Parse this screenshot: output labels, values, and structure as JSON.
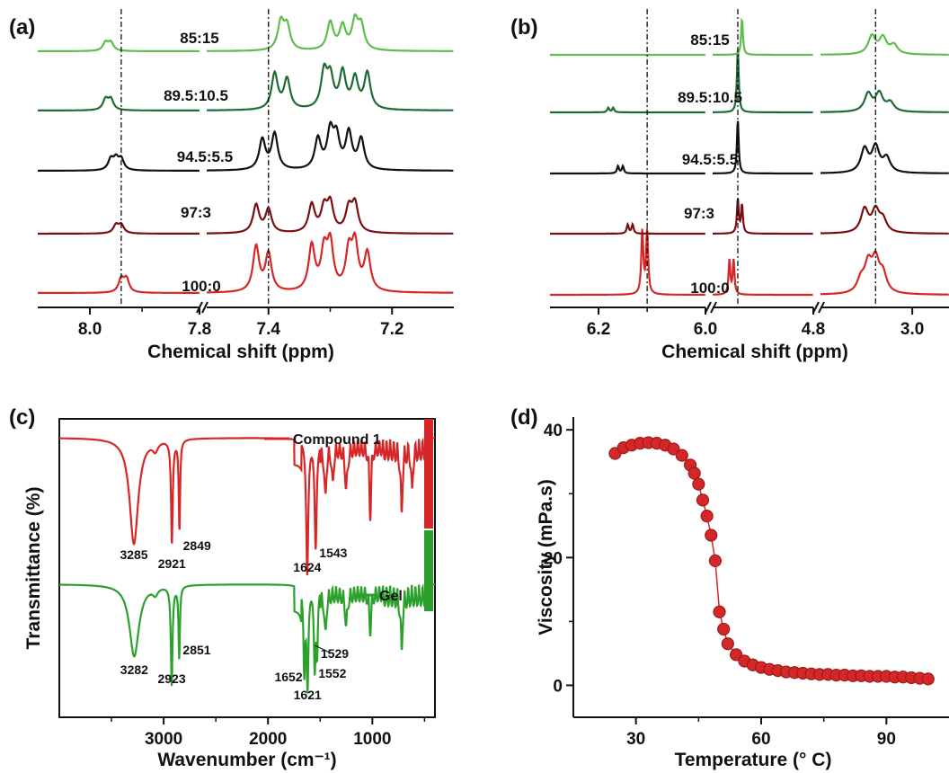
{
  "chart_data": [
    {
      "id": "a",
      "panel_label": "(a)",
      "type": "line",
      "xlabel": "Chemical shift (ppm)",
      "ylabel": "",
      "x_ticks": [
        "8.0",
        "7.8",
        "7.4",
        "7.2"
      ],
      "axis_breaks": [
        "between 7.8 and 7.4 ppm"
      ],
      "reference_lines_ppm": [
        7.94,
        7.4
      ],
      "series": [
        {
          "name": "100:0",
          "color": "#d62728",
          "peaks_ppm": [
            7.94,
            7.93,
            7.42,
            7.4,
            7.33,
            7.31,
            7.3,
            7.27,
            7.26,
            7.24
          ]
        },
        {
          "name": "97:3",
          "color": "#7a0f12",
          "peaks_ppm": [
            7.95,
            7.94,
            7.42,
            7.4,
            7.33,
            7.31,
            7.3,
            7.27,
            7.26
          ]
        },
        {
          "name": "94.5:5.5",
          "color": "#111111",
          "peaks_ppm": [
            7.96,
            7.95,
            7.94,
            7.41,
            7.39,
            7.32,
            7.3,
            7.29,
            7.27,
            7.25
          ]
        },
        {
          "name": "89.5:10.5",
          "color": "#1e6b35",
          "peaks_ppm": [
            7.97,
            7.96,
            7.39,
            7.37,
            7.31,
            7.3,
            7.28,
            7.26,
            7.24
          ]
        },
        {
          "name": "85:15",
          "color": "#5cbf4a",
          "peaks_ppm": [
            7.97,
            7.96,
            7.38,
            7.37,
            7.3,
            7.28,
            7.26,
            7.25
          ]
        }
      ]
    },
    {
      "id": "b",
      "panel_label": "(b)",
      "type": "line",
      "xlabel": "Chemical shift (ppm)",
      "ylabel": "",
      "x_ticks": [
        "6.2",
        "6.0",
        "4.8",
        "3.0"
      ],
      "axis_breaks": [
        "between 6.0 and 4.8 ppm",
        "between 4.8 and 3.0 ppm"
      ],
      "series": [
        {
          "name": "100:0",
          "color": "#d62728"
        },
        {
          "name": "97:3",
          "color": "#7a0f12"
        },
        {
          "name": "94.5:5.5",
          "color": "#111111"
        },
        {
          "name": "89.5:10.5",
          "color": "#1e6b35"
        },
        {
          "name": "85:15",
          "color": "#5cbf4a"
        }
      ]
    },
    {
      "id": "c",
      "panel_label": "(c)",
      "type": "line",
      "xlabel": "Wavenumber (cm⁻¹)",
      "ylabel": "Transmittance (%)",
      "x_ticks": [
        3000,
        2000,
        1000
      ],
      "xlim": [
        4000,
        400
      ],
      "legend_position": "top-right",
      "series": [
        {
          "name": "Compound 1",
          "color": "#d62728",
          "peaks_cm-1": [
            3285,
            2921,
            2849,
            1624,
            1543
          ]
        },
        {
          "name": "Gel",
          "color": "#2ca02c",
          "peaks_cm-1": [
            3282,
            2923,
            2851,
            1652,
            1621,
            1552,
            1529
          ]
        }
      ]
    },
    {
      "id": "d",
      "panel_label": "(d)",
      "type": "scatter",
      "xlabel": "Temperature (° C)",
      "ylabel": "Viscosity (mPa.s)",
      "x_ticks": [
        30,
        60,
        90
      ],
      "y_ticks": [
        0,
        20,
        40
      ],
      "ylim": [
        -5,
        42
      ],
      "series": [
        {
          "name": "",
          "color": "#d62728",
          "x": [
            25,
            27,
            29,
            31,
            33,
            35,
            37,
            39,
            41,
            43,
            44,
            45,
            46,
            47,
            48,
            49,
            50,
            51,
            52,
            54,
            56,
            58,
            60,
            62,
            64,
            66,
            68,
            70,
            72,
            74,
            76,
            78,
            80,
            82,
            84,
            86,
            88,
            90,
            92,
            94,
            96,
            98,
            100
          ],
          "y": [
            36.3,
            37.2,
            37.6,
            37.9,
            38.0,
            37.9,
            37.6,
            37.0,
            36.0,
            34.5,
            33.2,
            31.5,
            29.0,
            26.5,
            23.5,
            19.5,
            11.5,
            8.8,
            6.5,
            4.8,
            3.8,
            3.2,
            2.8,
            2.5,
            2.3,
            2.1,
            2.0,
            1.9,
            1.8,
            1.7,
            1.7,
            1.6,
            1.6,
            1.5,
            1.5,
            1.4,
            1.4,
            1.4,
            1.3,
            1.3,
            1.2,
            1.1,
            1.0
          ]
        }
      ]
    }
  ]
}
